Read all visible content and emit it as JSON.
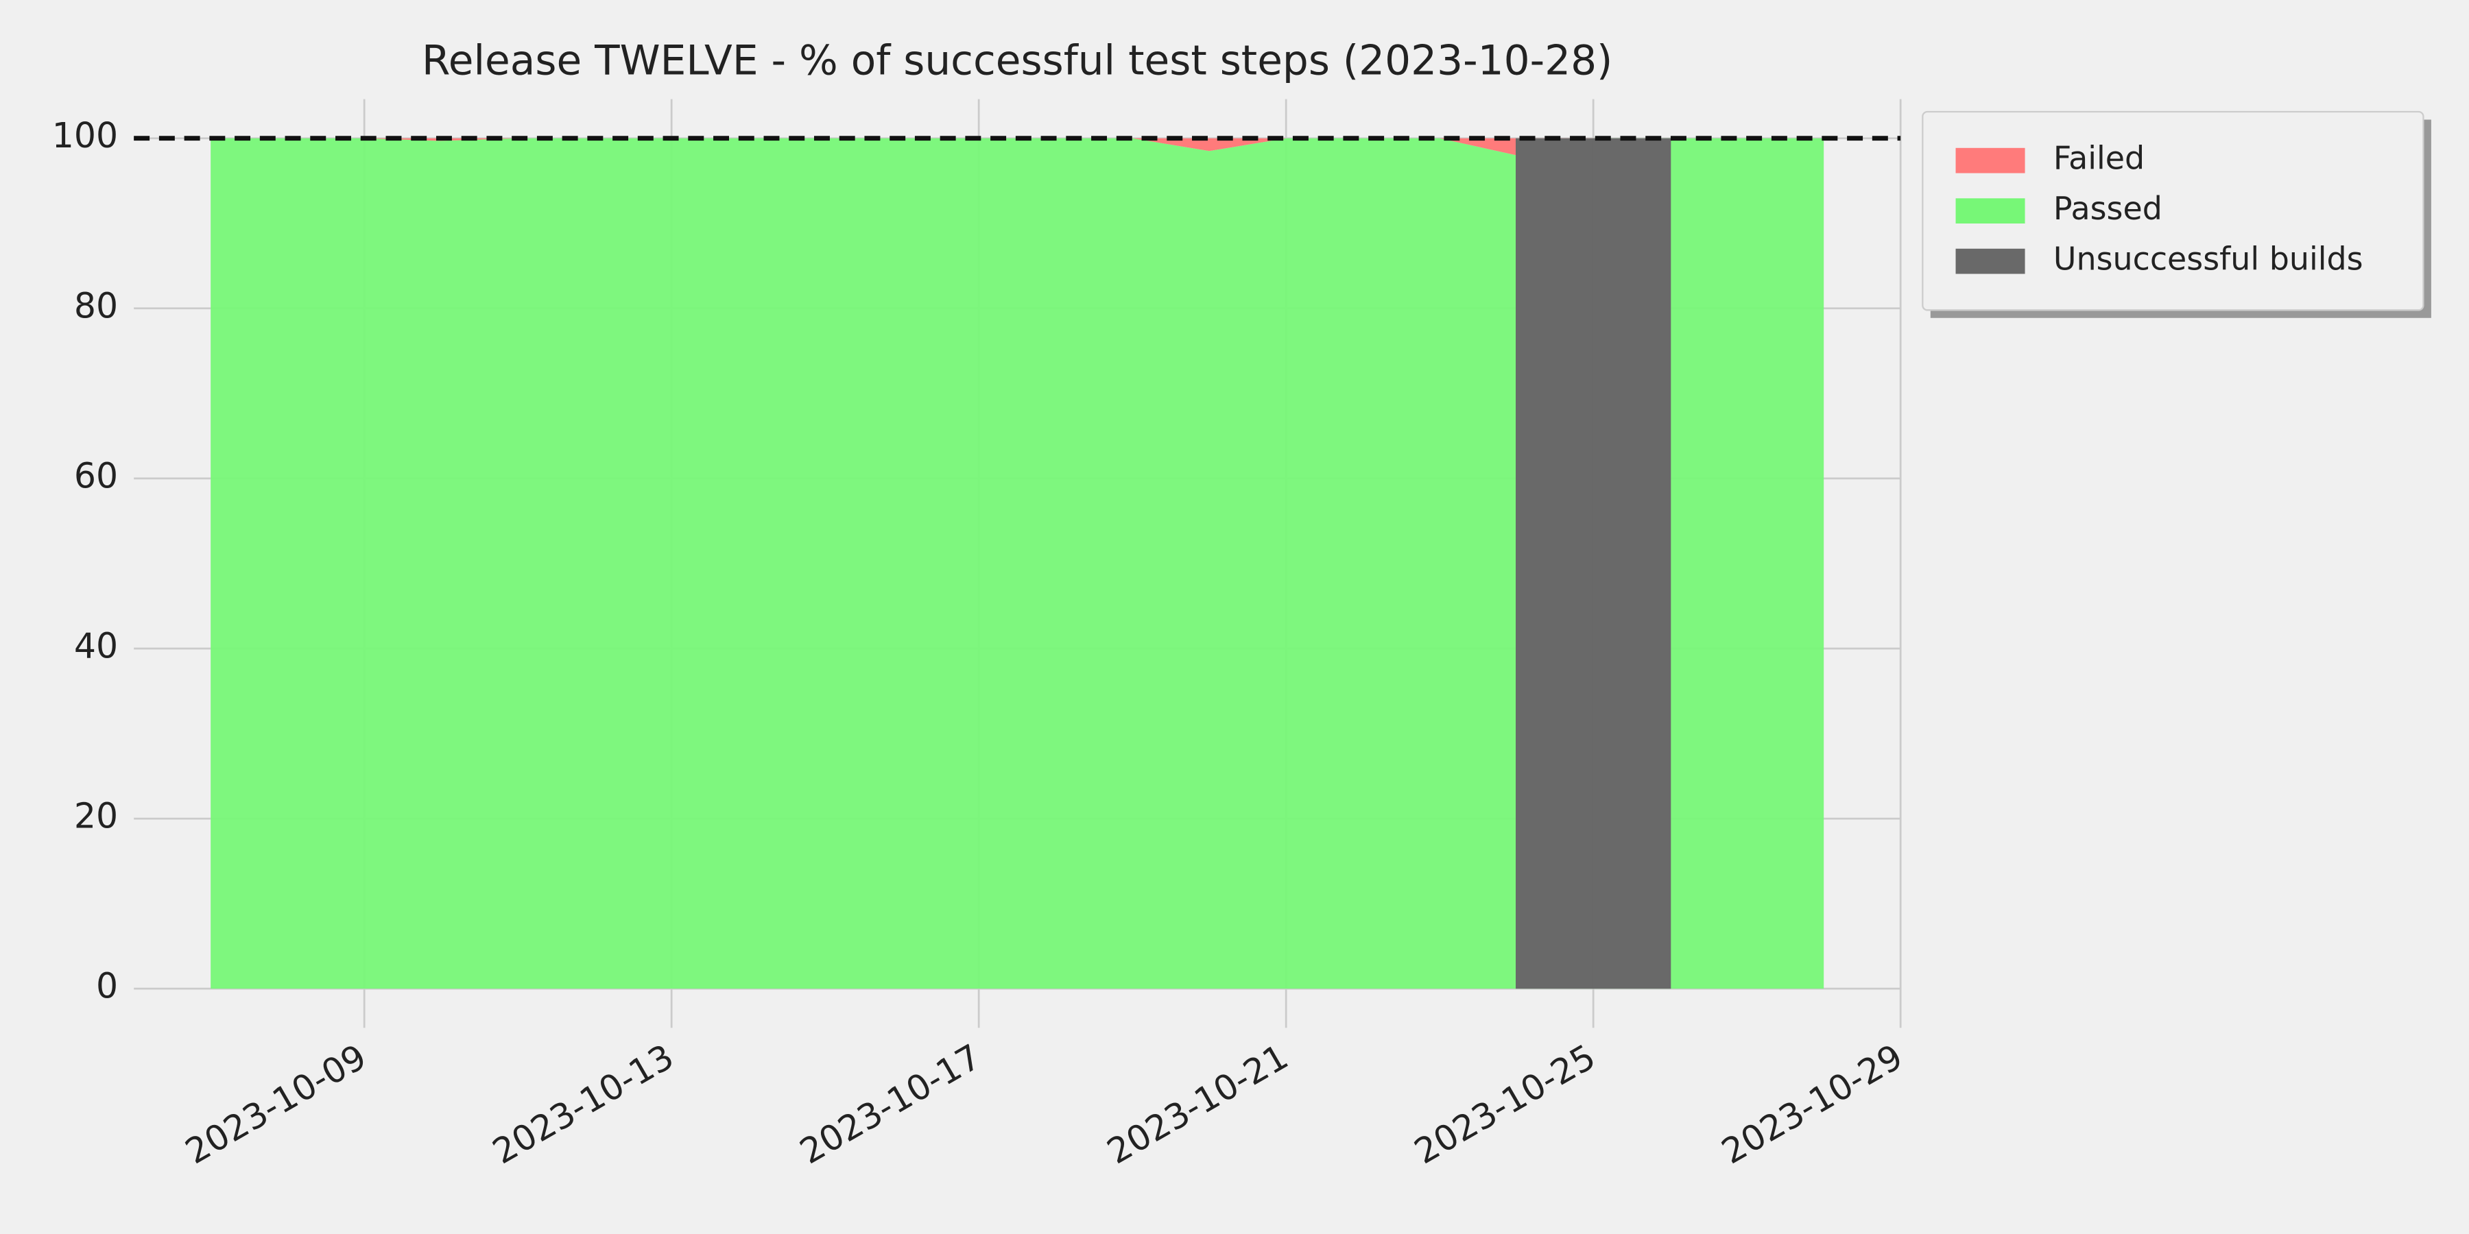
{
  "chart_data": {
    "type": "area",
    "title": "Release TWELVE - % of successful test steps (2023-10-28)",
    "x": [
      "2023-10-07",
      "2023-10-08",
      "2023-10-09",
      "2023-10-10",
      "2023-10-11",
      "2023-10-12",
      "2023-10-13",
      "2023-10-14",
      "2023-10-15",
      "2023-10-16",
      "2023-10-17",
      "2023-10-18",
      "2023-10-19",
      "2023-10-20",
      "2023-10-21",
      "2023-10-22",
      "2023-10-23",
      "2023-10-24",
      "2023-10-25",
      "2023-10-26",
      "2023-10-27",
      "2023-10-28"
    ],
    "series": [
      {
        "name": "Failed",
        "color": "#ff7b7b",
        "values": [
          0,
          0,
          0,
          0.3,
          0,
          0,
          0,
          0,
          0,
          0,
          0,
          0,
          0,
          1.5,
          0,
          0,
          0,
          2,
          0,
          0,
          0,
          0
        ]
      },
      {
        "name": "Passed",
        "color": "#77f777",
        "values": [
          100,
          100,
          100,
          99.7,
          100,
          100,
          100,
          100,
          100,
          100,
          100,
          100,
          100,
          98.5,
          100,
          100,
          100,
          98,
          100,
          100,
          100,
          100
        ]
      }
    ],
    "unsuccessful_builds": {
      "name": "Unsuccessful builds",
      "color": "#696969",
      "x": [
        "2023-10-24",
        "2023-10-25"
      ],
      "values": [
        100,
        100
      ]
    },
    "reference_line": 100,
    "xlim": [
      "2023-10-06",
      "2023-10-29"
    ],
    "xticks": [
      "2023-10-09",
      "2023-10-13",
      "2023-10-17",
      "2023-10-21",
      "2023-10-25",
      "2023-10-29"
    ],
    "ylim": [
      -4.6,
      104.6
    ],
    "yticks": [
      0,
      20,
      40,
      60,
      80,
      100
    ],
    "grid": true,
    "legend": "outside upper right"
  }
}
